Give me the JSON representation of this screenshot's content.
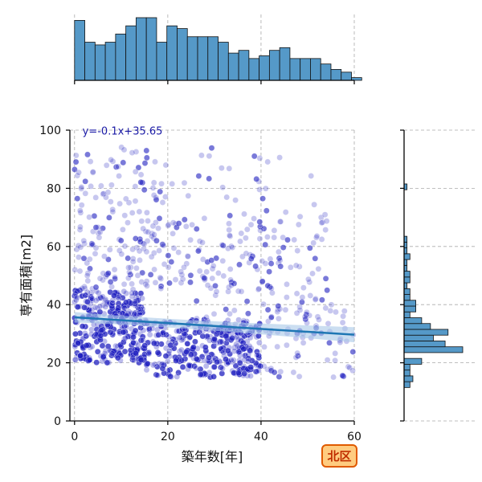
{
  "chart_data": {
    "type": "scatter",
    "title": "",
    "xlabel": "築年数[年]",
    "ylabel": "専有面積[m2]",
    "xlim": [
      -1,
      60
    ],
    "ylim": [
      0,
      100
    ],
    "xticks": [
      0,
      20,
      40,
      60
    ],
    "yticks": [
      0,
      20,
      40,
      60,
      80,
      100
    ],
    "grid": true,
    "regression": {
      "slope": -0.1,
      "intercept": 35.65,
      "label": "y=-0.1x+35.65"
    },
    "badge": "北区",
    "colors": {
      "point": "#1f1fbf",
      "line": "#1f77b4",
      "band": "#a8c8e8",
      "hist_fill": "#5599c8",
      "badge_fill": "#ffcc80",
      "badge_border": "#e05a00"
    },
    "x_histogram": {
      "bin_start": 0,
      "bin_width": 2.2,
      "counts": [
        22,
        14,
        13,
        14,
        17,
        20,
        23,
        23,
        14,
        20,
        19,
        16,
        16,
        16,
        14,
        10,
        11,
        8,
        9,
        11,
        12,
        8,
        8,
        8,
        6,
        4,
        3,
        1
      ]
    },
    "y_histogram": {
      "bin_start": 9.5,
      "bin_width": 2.0,
      "counts": [
        0,
        2,
        3,
        2,
        2,
        6,
        0,
        20,
        14,
        10,
        15,
        9,
        6,
        2,
        4,
        4,
        2,
        2,
        1,
        2,
        2,
        1,
        1,
        2,
        1,
        1,
        1,
        0,
        0,
        0,
        0,
        0,
        0,
        0,
        0,
        1,
        0,
        0,
        0,
        0
      ]
    },
    "scatter_clusters": [
      {
        "x": [
          0,
          15
        ],
        "y": [
          20,
          45
        ],
        "n": 330,
        "dense": true
      },
      {
        "x": [
          15,
          40
        ],
        "y": [
          15,
          35
        ],
        "n": 330,
        "dense": true
      },
      {
        "x": [
          0,
          25
        ],
        "y": [
          45,
          70
        ],
        "n": 140,
        "dense": false
      },
      {
        "x": [
          25,
          55
        ],
        "y": [
          30,
          70
        ],
        "n": 170,
        "dense": false
      },
      {
        "x": [
          0,
          20
        ],
        "y": [
          70,
          95
        ],
        "n": 70,
        "dense": false
      },
      {
        "x": [
          20,
          55
        ],
        "y": [
          70,
          95
        ],
        "n": 30,
        "dense": false
      },
      {
        "x": [
          40,
          60
        ],
        "y": [
          15,
          40
        ],
        "n": 60,
        "dense": false
      }
    ]
  }
}
